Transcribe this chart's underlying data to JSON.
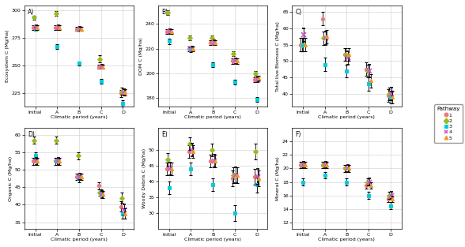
{
  "x_labels": [
    "Initial",
    "A",
    "B",
    "C",
    "D"
  ],
  "x_positions": [
    0,
    1,
    2,
    3,
    4
  ],
  "pathways": [
    "1",
    "2",
    "3",
    "4",
    "5"
  ],
  "colors": [
    "#ee6688",
    "#88bb00",
    "#00bbdd",
    "#bb44bb",
    "#ee6688"
  ],
  "colors5": [
    "#f07878",
    "#99bb22",
    "#00ccee",
    "#cc55cc",
    "#ee9922"
  ],
  "markers": [
    "o",
    "D",
    "s",
    "x",
    "^"
  ],
  "offsets": [
    -0.1,
    -0.05,
    0.0,
    0.05,
    0.1
  ],
  "panels": [
    {
      "label": "A)",
      "ylabel": "Ecosystem C (Mg/ha)",
      "ylim": [
        213,
        304
      ],
      "yticks": [
        225,
        250,
        275,
        300
      ],
      "data": [
        [
          284,
          284,
          283,
          249,
          225
        ],
        [
          293,
          297,
          283,
          256,
          227
        ],
        [
          283,
          267,
          252,
          236,
          216
        ],
        [
          284,
          284,
          283,
          249,
          226
        ],
        [
          284,
          284,
          283,
          249,
          226
        ]
      ],
      "ci": [
        [
          2,
          2,
          2,
          2,
          3
        ],
        [
          2,
          2,
          2,
          3,
          3
        ],
        [
          2,
          2,
          2,
          2,
          3
        ],
        [
          2,
          2,
          2,
          2,
          3
        ],
        [
          2,
          2,
          2,
          2,
          3
        ]
      ]
    },
    {
      "label": "B)",
      "ylabel": "DOM C (Mg/ha)",
      "ylim": [
        173,
        255
      ],
      "yticks": [
        180,
        200,
        220,
        240
      ],
      "data": [
        [
          234,
          220,
          225,
          210,
          195
        ],
        [
          249,
          229,
          229,
          216,
          200
        ],
        [
          226,
          219,
          207,
          193,
          179
        ],
        [
          234,
          220,
          225,
          210,
          195
        ],
        [
          234,
          220,
          225,
          210,
          196
        ]
      ],
      "ci": [
        [
          2,
          2,
          2,
          2,
          2
        ],
        [
          2,
          2,
          2,
          2,
          2
        ],
        [
          2,
          2,
          2,
          2,
          2
        ],
        [
          2,
          2,
          2,
          2,
          2
        ],
        [
          2,
          2,
          2,
          2,
          2
        ]
      ]
    },
    {
      "label": "C)",
      "ylabel": "Total live Biomass C (Mg/ha)",
      "ylim": [
        36,
        67
      ],
      "yticks": [
        40,
        45,
        50,
        55,
        60,
        65
      ],
      "data": [
        [
          55,
          63,
          52,
          47.5,
          39.5
        ],
        [
          55,
          57,
          52,
          47,
          40
        ],
        [
          55,
          49,
          47,
          43,
          39
        ],
        [
          58,
          57,
          51,
          47,
          40
        ],
        [
          55,
          57.5,
          52,
          44,
          39
        ]
      ],
      "ci": [
        [
          2,
          2,
          2,
          2,
          2
        ],
        [
          2,
          2,
          2,
          2,
          2
        ],
        [
          2,
          2,
          2,
          2,
          2
        ],
        [
          2,
          2,
          2,
          2,
          2
        ],
        [
          2,
          2,
          2,
          2,
          2
        ]
      ]
    },
    {
      "label": "D)",
      "ylabel": "Organic C (Mg/ha)",
      "ylim": [
        33,
        62
      ],
      "yticks": [
        35,
        40,
        45,
        50,
        55,
        60
      ],
      "data": [
        [
          52.5,
          52.5,
          48,
          45.5,
          39.5
        ],
        [
          58.5,
          58.5,
          54,
          43.5,
          42
        ],
        [
          54,
          52.5,
          47.5,
          43.5,
          37.5
        ],
        [
          52.5,
          52.5,
          48,
          43,
          38.5
        ],
        [
          52.5,
          52.5,
          48,
          43,
          37.5
        ]
      ],
      "ci": [
        [
          1,
          1,
          1,
          1,
          1.5
        ],
        [
          1,
          1,
          1,
          1,
          1.5
        ],
        [
          1,
          1,
          1,
          1,
          1.5
        ],
        [
          1,
          1,
          1,
          1,
          1.5
        ],
        [
          1,
          1,
          1,
          1,
          1.5
        ]
      ]
    },
    {
      "label": "E)",
      "ylabel": "Woody Debris C (Mg/ha)",
      "ylim": [
        25,
        57
      ],
      "yticks": [
        30,
        35,
        40,
        45,
        50
      ],
      "data": [
        [
          44,
          49.5,
          46.5,
          41,
          41.5
        ],
        [
          47,
          52,
          50,
          42,
          49.5
        ],
        [
          38,
          44,
          39,
          30,
          39
        ],
        [
          44,
          50,
          46.5,
          42,
          41.5
        ],
        [
          44,
          49.5,
          46.5,
          42,
          41
        ]
      ],
      "ci": [
        [
          2,
          2,
          2,
          2.5,
          2.5
        ],
        [
          2,
          2,
          2,
          2.5,
          2.5
        ],
        [
          2,
          2,
          2,
          2.5,
          2.5
        ],
        [
          2,
          2,
          2,
          2.5,
          2.5
        ],
        [
          2,
          2,
          2,
          2.5,
          2.5
        ]
      ]
    },
    {
      "label": "F)",
      "ylabel": "Mineral C (Mg/ha)",
      "ylim": [
        11,
        26
      ],
      "yticks": [
        12,
        14,
        16,
        18,
        20,
        22,
        24
      ],
      "data": [
        [
          20.5,
          20.5,
          20,
          17.5,
          15.5
        ],
        [
          20.5,
          20.5,
          20,
          18,
          16
        ],
        [
          18,
          19,
          18,
          16,
          14.5
        ],
        [
          20.5,
          20.5,
          20,
          18,
          16
        ],
        [
          20.5,
          20.5,
          20,
          17.5,
          15.5
        ]
      ],
      "ci": [
        [
          0.5,
          0.5,
          0.5,
          0.5,
          0.5
        ],
        [
          0.5,
          0.5,
          0.5,
          0.5,
          0.5
        ],
        [
          0.5,
          0.5,
          0.5,
          0.5,
          0.5
        ],
        [
          0.5,
          0.5,
          0.5,
          0.5,
          0.5
        ],
        [
          0.5,
          0.5,
          0.5,
          0.5,
          0.5
        ]
      ]
    }
  ],
  "legend_colors": [
    "#f07878",
    "#99bb22",
    "#00ccee",
    "#cc55cc",
    "#ee9922"
  ],
  "legend_markers": [
    "o",
    "D",
    "s",
    "x",
    "^"
  ]
}
